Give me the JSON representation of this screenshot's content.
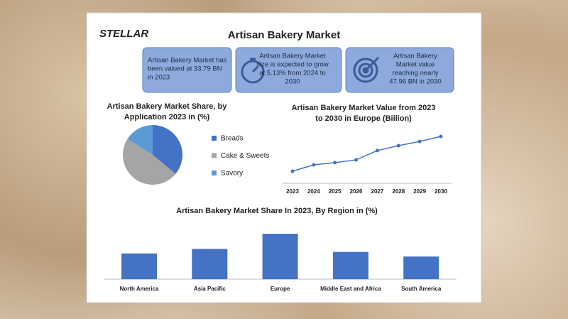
{
  "header": {
    "logo": "STELLAR",
    "title": "Artisan Bakery Market"
  },
  "info_boxes": [
    [
      "Artisan Bakery Market has",
      "been valued at 33.79 BN",
      "in 2023"
    ],
    [
      "Artisan Bakery Market",
      "size is expected to grow",
      "at 5.13% from 2024 to",
      "2030"
    ],
    [
      "Artisan Bakery",
      "Market value",
      "reaching nearly",
      "47.96 BN in 2030"
    ]
  ],
  "chart_data": [
    {
      "type": "pie",
      "title": [
        "Artisan Bakery Market Share, by",
        "Application  2023 in (%)"
      ],
      "categories": [
        "Breads",
        "Cake & Sweets",
        "Savory"
      ],
      "values": [
        36,
        48,
        16
      ],
      "colors": [
        "#4472c4",
        "#a5a5a5",
        "#5b9bd5"
      ]
    },
    {
      "type": "line",
      "title": [
        "Artisan Bakery Market Value from 2023",
        "to 2030 in Europe (Biilion)"
      ],
      "x": [
        2023,
        2024,
        2025,
        2026,
        2027,
        2028,
        2029,
        2030
      ],
      "values": [
        33.79,
        36.4,
        37.3,
        38.4,
        42.2,
        44.2,
        45.9,
        47.96
      ],
      "color": "#4472c4"
    },
    {
      "type": "bar",
      "title": "Artisan Bakery Market Share In 2023, By Region in (%)",
      "categories": [
        "North America",
        "Asia Pacific",
        "Europe",
        "Middle East and Africa",
        "South America"
      ],
      "values": [
        17,
        20,
        30,
        18,
        15
      ],
      "color": "#4472c4"
    }
  ]
}
